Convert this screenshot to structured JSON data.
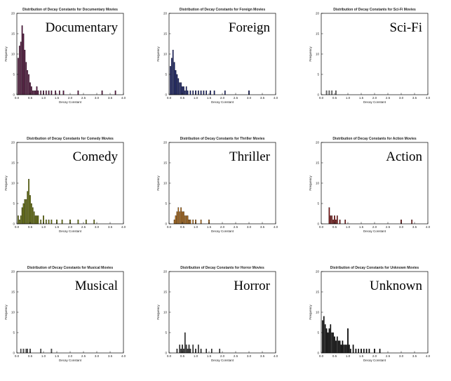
{
  "charts": [
    {
      "title": "Distribution of Decay Constants for Documentary Movies",
      "genre": "Documentary",
      "color": "#5a1040",
      "xlabel": "Decay Constant",
      "ylabel": "Frequency",
      "xlim": [
        0,
        4
      ],
      "ylim": [
        0,
        20
      ],
      "bins": [
        [
          0.05,
          9
        ],
        [
          0.1,
          12
        ],
        [
          0.15,
          13
        ],
        [
          0.2,
          17
        ],
        [
          0.25,
          15
        ],
        [
          0.3,
          11
        ],
        [
          0.35,
          8
        ],
        [
          0.4,
          6
        ],
        [
          0.45,
          5
        ],
        [
          0.5,
          3
        ],
        [
          0.55,
          2
        ],
        [
          0.6,
          1
        ],
        [
          0.65,
          1
        ],
        [
          0.7,
          1
        ],
        [
          0.75,
          2
        ],
        [
          0.8,
          1
        ],
        [
          0.9,
          1
        ],
        [
          1.0,
          1
        ],
        [
          1.1,
          1
        ],
        [
          1.2,
          1
        ],
        [
          1.3,
          1
        ],
        [
          1.45,
          1
        ],
        [
          1.6,
          1
        ],
        [
          1.75,
          1
        ],
        [
          2.3,
          1
        ],
        [
          3.2,
          1
        ],
        [
          3.7,
          1
        ]
      ]
    },
    {
      "title": "Distribution of Decay Constants for Foreign Movies",
      "genre": "Foreign",
      "color": "#101a6e",
      "xlabel": "Decay Constant",
      "ylabel": "Frequency",
      "xlim": [
        0,
        4
      ],
      "ylim": [
        0,
        20
      ],
      "bins": [
        [
          0.05,
          7
        ],
        [
          0.1,
          9
        ],
        [
          0.15,
          11
        ],
        [
          0.2,
          8
        ],
        [
          0.25,
          6
        ],
        [
          0.3,
          5
        ],
        [
          0.35,
          4
        ],
        [
          0.4,
          3
        ],
        [
          0.45,
          3
        ],
        [
          0.5,
          2
        ],
        [
          0.55,
          2
        ],
        [
          0.6,
          1
        ],
        [
          0.65,
          2
        ],
        [
          0.7,
          1
        ],
        [
          0.8,
          1
        ],
        [
          0.9,
          1
        ],
        [
          1.0,
          1
        ],
        [
          1.1,
          1
        ],
        [
          1.2,
          1
        ],
        [
          1.3,
          1
        ],
        [
          1.4,
          1
        ],
        [
          1.55,
          1
        ],
        [
          1.7,
          1
        ],
        [
          2.1,
          1
        ],
        [
          3.0,
          1
        ]
      ]
    },
    {
      "title": "Distribution of Decay Constants for Sci-Fi Movies",
      "genre": "Sci-Fi",
      "color": "#777777",
      "xlabel": "Decay Constant",
      "ylabel": "Frequency",
      "xlim": [
        0,
        4
      ],
      "ylim": [
        0,
        20
      ],
      "bins": [
        [
          0.2,
          1
        ],
        [
          0.3,
          1
        ],
        [
          0.4,
          1
        ],
        [
          0.55,
          1
        ]
      ]
    },
    {
      "title": "Distribution of Decay Constants for Comedy Movies",
      "genre": "Comedy",
      "color": "#6e7a00",
      "xlabel": "Decay Constant",
      "ylabel": "Frequency",
      "xlim": [
        0,
        4
      ],
      "ylim": [
        0,
        20
      ],
      "bins": [
        [
          0.05,
          2
        ],
        [
          0.1,
          1
        ],
        [
          0.15,
          2
        ],
        [
          0.2,
          4
        ],
        [
          0.25,
          5
        ],
        [
          0.3,
          6
        ],
        [
          0.35,
          6
        ],
        [
          0.4,
          8
        ],
        [
          0.45,
          11
        ],
        [
          0.5,
          7
        ],
        [
          0.55,
          5
        ],
        [
          0.6,
          4
        ],
        [
          0.65,
          3
        ],
        [
          0.7,
          2
        ],
        [
          0.75,
          2
        ],
        [
          0.8,
          2
        ],
        [
          0.9,
          1
        ],
        [
          1.0,
          2
        ],
        [
          1.1,
          1
        ],
        [
          1.2,
          1
        ],
        [
          1.3,
          1
        ],
        [
          1.5,
          1
        ],
        [
          1.7,
          1
        ],
        [
          2.0,
          1
        ],
        [
          2.3,
          1
        ],
        [
          2.6,
          1
        ],
        [
          2.9,
          1
        ]
      ]
    },
    {
      "title": "Distribution of Decay Constants for Thriller Movies",
      "genre": "Thriller",
      "color": "#c07010",
      "xlabel": "Decay Constant",
      "ylabel": "Frequency",
      "xlim": [
        0,
        4
      ],
      "ylim": [
        0,
        20
      ],
      "bins": [
        [
          0.2,
          1
        ],
        [
          0.25,
          2
        ],
        [
          0.3,
          3
        ],
        [
          0.35,
          4
        ],
        [
          0.4,
          3
        ],
        [
          0.45,
          4
        ],
        [
          0.5,
          3
        ],
        [
          0.55,
          3
        ],
        [
          0.6,
          2
        ],
        [
          0.65,
          2
        ],
        [
          0.7,
          2
        ],
        [
          0.75,
          1
        ],
        [
          0.8,
          1
        ],
        [
          0.9,
          1
        ],
        [
          1.0,
          1
        ],
        [
          1.2,
          1
        ],
        [
          1.5,
          1
        ]
      ]
    },
    {
      "title": "Distribution of Decay Constants for Action Movies",
      "genre": "Action",
      "color": "#8a1010",
      "xlabel": "Decay Constant",
      "ylabel": "Frequency",
      "xlim": [
        0,
        4
      ],
      "ylim": [
        0,
        20
      ],
      "bins": [
        [
          0.3,
          4
        ],
        [
          0.35,
          2
        ],
        [
          0.4,
          2
        ],
        [
          0.45,
          1
        ],
        [
          0.5,
          2
        ],
        [
          0.55,
          1
        ],
        [
          0.6,
          2
        ],
        [
          0.7,
          1
        ],
        [
          0.9,
          1
        ],
        [
          3.0,
          1
        ],
        [
          3.4,
          1
        ]
      ]
    },
    {
      "title": "Distribution of Decay Constants for Musical Movies",
      "genre": "Musical",
      "color": "#555555",
      "xlabel": "Decay Constant",
      "ylabel": "Frequency",
      "xlim": [
        0,
        4
      ],
      "ylim": [
        0,
        20
      ],
      "bins": [
        [
          0.15,
          1
        ],
        [
          0.25,
          1
        ],
        [
          0.35,
          1
        ],
        [
          0.4,
          1
        ],
        [
          0.5,
          1
        ],
        [
          0.9,
          1
        ],
        [
          1.3,
          1
        ]
      ]
    },
    {
      "title": "Distribution of Decay Constants for Horror Movies",
      "genre": "Horror",
      "color": "#333333",
      "xlabel": "Decay Constant",
      "ylabel": "Frequency",
      "xlim": [
        0,
        4
      ],
      "ylim": [
        0,
        20
      ],
      "bins": [
        [
          0.3,
          1
        ],
        [
          0.4,
          2
        ],
        [
          0.45,
          1
        ],
        [
          0.5,
          2
        ],
        [
          0.55,
          1
        ],
        [
          0.6,
          5
        ],
        [
          0.65,
          2
        ],
        [
          0.7,
          1
        ],
        [
          0.75,
          2
        ],
        [
          0.8,
          1
        ],
        [
          0.9,
          2
        ],
        [
          1.0,
          1
        ],
        [
          1.1,
          2
        ],
        [
          1.2,
          1
        ],
        [
          1.4,
          1
        ],
        [
          1.6,
          1
        ],
        [
          1.9,
          1
        ]
      ]
    },
    {
      "title": "Distribution of Decay Constants for Unknown Movies",
      "genre": "Unknown",
      "color": "#000000",
      "xlabel": "Decay Constant",
      "ylabel": "Frequency",
      "xlim": [
        0,
        4
      ],
      "ylim": [
        0,
        20
      ],
      "bins": [
        [
          0.05,
          8
        ],
        [
          0.1,
          9
        ],
        [
          0.15,
          7
        ],
        [
          0.2,
          6
        ],
        [
          0.25,
          5
        ],
        [
          0.3,
          6
        ],
        [
          0.35,
          7
        ],
        [
          0.4,
          5
        ],
        [
          0.45,
          5
        ],
        [
          0.5,
          4
        ],
        [
          0.55,
          3
        ],
        [
          0.6,
          4
        ],
        [
          0.65,
          3
        ],
        [
          0.7,
          3
        ],
        [
          0.75,
          2
        ],
        [
          0.8,
          3
        ],
        [
          0.85,
          2
        ],
        [
          0.9,
          2
        ],
        [
          0.95,
          2
        ],
        [
          1.0,
          6
        ],
        [
          1.05,
          2
        ],
        [
          1.1,
          1
        ],
        [
          1.2,
          2
        ],
        [
          1.3,
          1
        ],
        [
          1.4,
          1
        ],
        [
          1.5,
          1
        ],
        [
          1.6,
          1
        ],
        [
          1.7,
          1
        ],
        [
          1.8,
          1
        ],
        [
          2.0,
          1
        ],
        [
          2.2,
          1
        ]
      ]
    }
  ],
  "chart_data": [
    {
      "type": "bar",
      "title": "Distribution of Decay Constants for Documentary Movies",
      "xlabel": "Decay Constant",
      "ylabel": "Frequency",
      "xlim": [
        0,
        4
      ],
      "ylim": [
        0,
        20
      ]
    },
    {
      "type": "bar",
      "title": "Distribution of Decay Constants for Foreign Movies",
      "xlabel": "Decay Constant",
      "ylabel": "Frequency",
      "xlim": [
        0,
        4
      ],
      "ylim": [
        0,
        20
      ]
    },
    {
      "type": "bar",
      "title": "Distribution of Decay Constants for Sci-Fi Movies",
      "xlabel": "Decay Constant",
      "ylabel": "Frequency",
      "xlim": [
        0,
        4
      ],
      "ylim": [
        0,
        20
      ]
    },
    {
      "type": "bar",
      "title": "Distribution of Decay Constants for Comedy Movies",
      "xlabel": "Decay Constant",
      "ylabel": "Frequency",
      "xlim": [
        0,
        4
      ],
      "ylim": [
        0,
        20
      ]
    },
    {
      "type": "bar",
      "title": "Distribution of Decay Constants for Thriller Movies",
      "xlabel": "Decay Constant",
      "ylabel": "Frequency",
      "xlim": [
        0,
        4
      ],
      "ylim": [
        0,
        20
      ]
    },
    {
      "type": "bar",
      "title": "Distribution of Decay Constants for Action Movies",
      "xlabel": "Decay Constant",
      "ylabel": "Frequency",
      "xlim": [
        0,
        4
      ],
      "ylim": [
        0,
        20
      ]
    },
    {
      "type": "bar",
      "title": "Distribution of Decay Constants for Musical Movies",
      "xlabel": "Decay Constant",
      "ylabel": "Frequency",
      "xlim": [
        0,
        4
      ],
      "ylim": [
        0,
        20
      ]
    },
    {
      "type": "bar",
      "title": "Distribution of Decay Constants for Horror Movies",
      "xlabel": "Decay Constant",
      "ylabel": "Frequency",
      "xlim": [
        0,
        4
      ],
      "ylim": [
        0,
        20
      ]
    },
    {
      "type": "bar",
      "title": "Distribution of Decay Constants for Unknown Movies",
      "xlabel": "Decay Constant",
      "ylabel": "Frequency",
      "xlim": [
        0,
        4
      ],
      "ylim": [
        0,
        20
      ]
    }
  ],
  "x_ticks": [
    "0.0",
    "0.5",
    "1.0",
    "1.5",
    "2.0",
    "2.5",
    "3.0",
    "3.5",
    "4.0"
  ],
  "y_ticks": [
    "0",
    "5",
    "10",
    "15",
    "20"
  ]
}
